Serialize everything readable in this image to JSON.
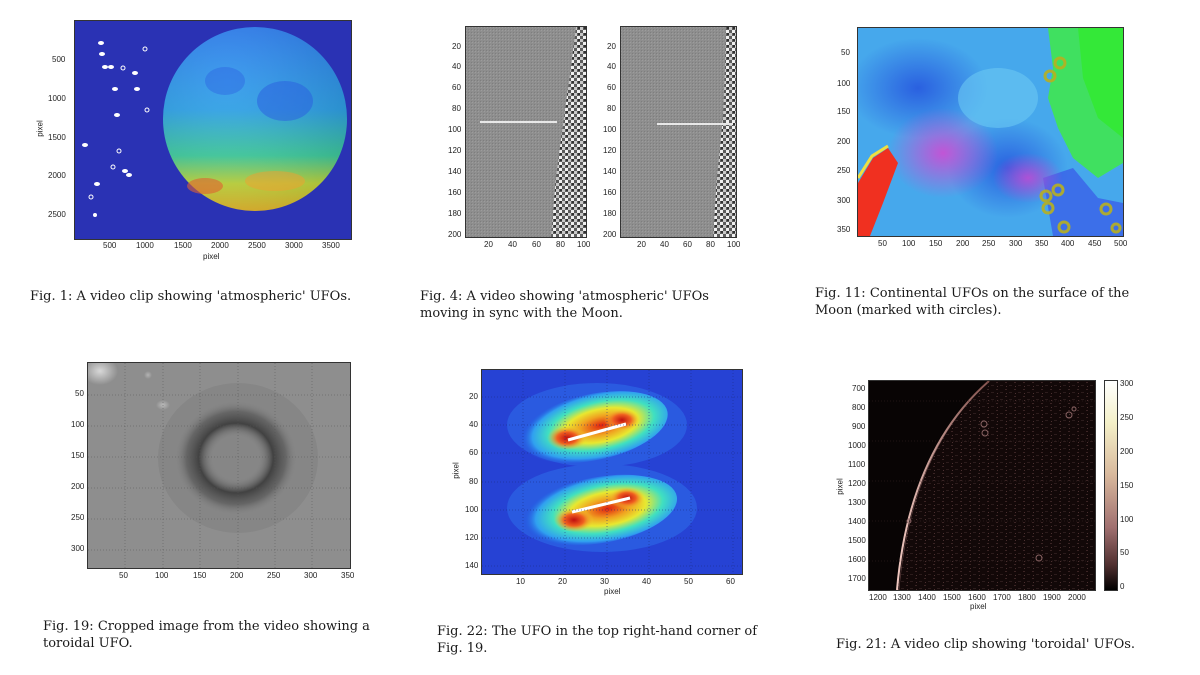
{
  "captions": {
    "fig1": "Fig. 1: A video clip showing 'atmospheric' UFOs.",
    "fig4": "Fig. 4: A video showing 'atmospheric' UFOs moving in sync with the Moon.",
    "fig11": "Fig. 11: Continental UFOs on the surface of the Moon (marked with circles).",
    "fig19": "Fig. 19: Cropped image from the video showing a toroidal UFO.",
    "fig22": "Fig. 22: The UFO in the top right-hand corner of Fig. 19.",
    "fig21": "Fig. 21: A video clip showing 'toroidal' UFOs."
  },
  "axes": {
    "fig1": {
      "xlabel": "pixel",
      "ylabel": "pixel",
      "xticks": [
        "500",
        "1000",
        "1500",
        "2000",
        "2500",
        "3000",
        "3500"
      ],
      "yticks": [
        "500",
        "1000",
        "1500",
        "2000",
        "2500"
      ]
    },
    "fig4a": {
      "xticks": [
        "20",
        "40",
        "60",
        "80",
        "100"
      ],
      "yticks": [
        "20",
        "40",
        "60",
        "80",
        "100",
        "120",
        "140",
        "160",
        "180",
        "200"
      ]
    },
    "fig4b": {
      "xticks": [
        "20",
        "40",
        "60",
        "80",
        "100"
      ],
      "yticks": [
        "20",
        "40",
        "60",
        "80",
        "100",
        "120",
        "140",
        "160",
        "180",
        "200"
      ]
    },
    "fig11": {
      "xticks": [
        "50",
        "100",
        "150",
        "200",
        "250",
        "300",
        "350",
        "400",
        "450",
        "500"
      ],
      "yticks": [
        "50",
        "100",
        "150",
        "200",
        "250",
        "300",
        "350"
      ]
    },
    "fig19": {
      "xticks": [
        "50",
        "100",
        "150",
        "200",
        "250",
        "300",
        "350"
      ],
      "yticks": [
        "50",
        "100",
        "150",
        "200",
        "250",
        "300"
      ]
    },
    "fig22": {
      "xlabel": "pixel",
      "ylabel": "pixel",
      "xticks": [
        "10",
        "20",
        "30",
        "40",
        "50",
        "60"
      ],
      "yticks": [
        "20",
        "40",
        "60",
        "80",
        "100",
        "120",
        "140"
      ]
    },
    "fig21": {
      "xlabel": "pixel",
      "ylabel": "pixel",
      "xticks": [
        "1200",
        "1300",
        "1400",
        "1500",
        "1600",
        "1700",
        "1800",
        "1900",
        "2000"
      ],
      "yticks": [
        "700",
        "800",
        "900",
        "1000",
        "1100",
        "1200",
        "1300",
        "1400",
        "1500",
        "1600",
        "1700"
      ],
      "cbticks": [
        "300",
        "250",
        "200",
        "150",
        "100",
        "50",
        "0"
      ]
    }
  }
}
